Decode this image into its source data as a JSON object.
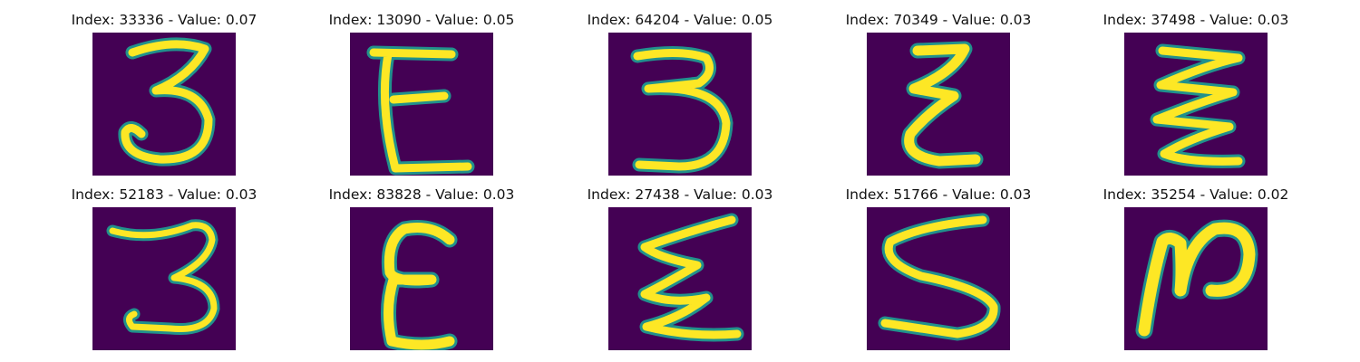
{
  "colors": {
    "background": "#440154",
    "stroke_core": "#fde725",
    "stroke_edge": "#21918c",
    "title_text": "#111111"
  },
  "tiles": [
    {
      "title": "Index: 33336 - Value: 0.07",
      "glyph": "3",
      "index": 33336,
      "value": 0.07
    },
    {
      "title": "Index: 13090 - Value: 0.05",
      "glyph": "E",
      "index": 13090,
      "value": 0.05
    },
    {
      "title": "Index: 64204 - Value: 0.05",
      "glyph": "3",
      "index": 64204,
      "value": 0.05
    },
    {
      "title": "Index: 70349 - Value: 0.03",
      "glyph": "ε",
      "index": 70349,
      "value": 0.03
    },
    {
      "title": "Index: 37498 - Value: 0.03",
      "glyph": "ʒ",
      "index": 37498,
      "value": 0.03
    },
    {
      "title": "Index: 52183 - Value: 0.03",
      "glyph": "3",
      "index": 52183,
      "value": 0.03
    },
    {
      "title": "Index: 83828 - Value: 0.03",
      "glyph": "ε",
      "index": 83828,
      "value": 0.03
    },
    {
      "title": "Index: 27438 - Value: 0.03",
      "glyph": "ε",
      "index": 27438,
      "value": 0.03
    },
    {
      "title": "Index: 51766 - Value: 0.03",
      "glyph": "S",
      "index": 51766,
      "value": 0.03
    },
    {
      "title": "Index: 35254 - Value: 0.02",
      "glyph": "N",
      "index": 35254,
      "value": 0.02
    }
  ]
}
